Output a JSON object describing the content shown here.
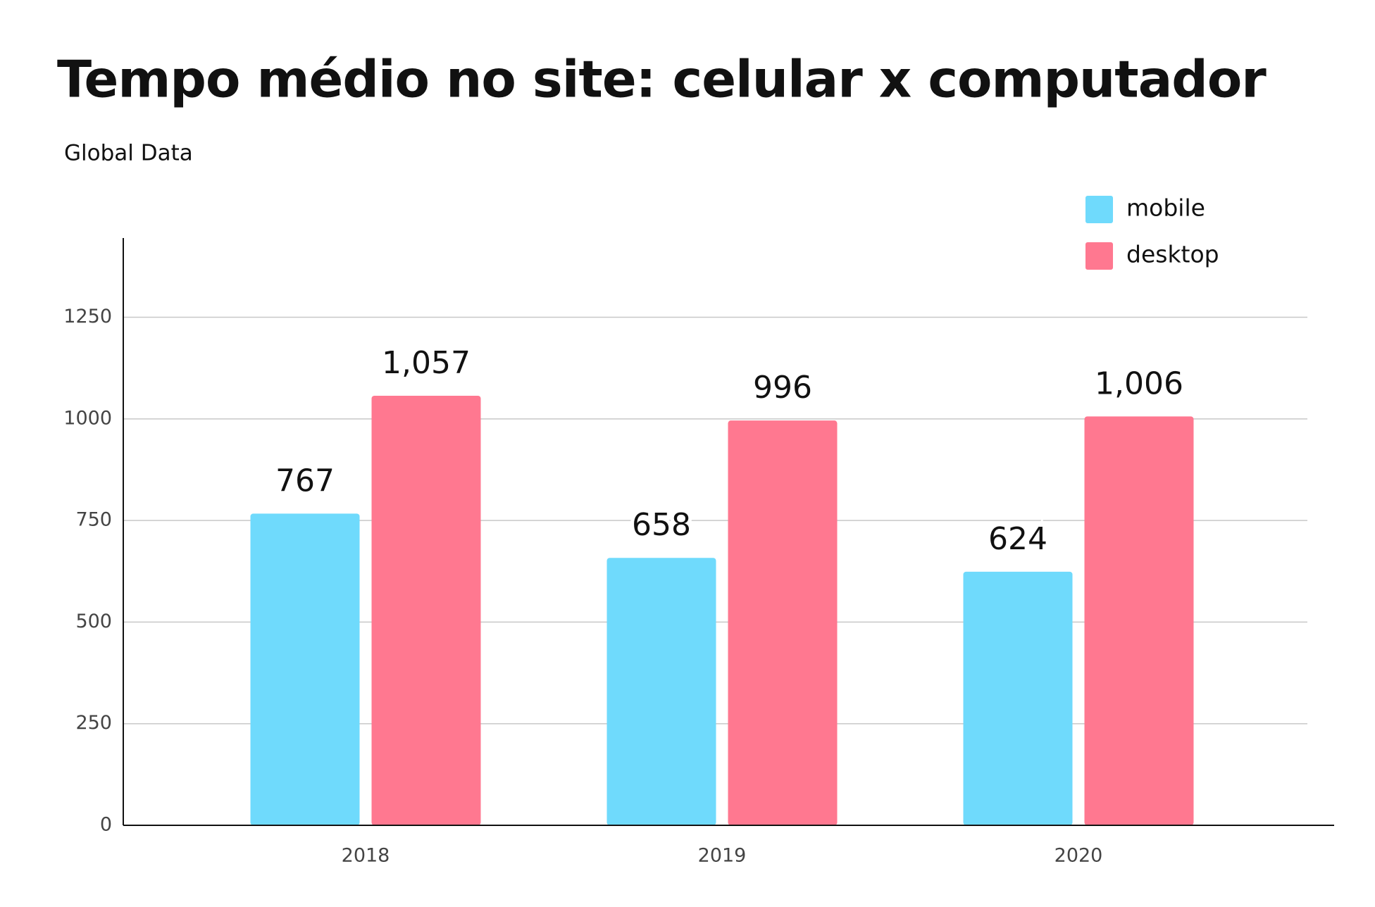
{
  "chart_data": {
    "type": "bar",
    "title": "Tempo médio no site: celular x computador",
    "subtitle": "Global Data",
    "categories": [
      "2018",
      "2019",
      "2020"
    ],
    "series": [
      {
        "name": "mobile",
        "color": "#6fdafc",
        "values": [
          767,
          658,
          624
        ],
        "value_labels": [
          "767",
          "658",
          "624"
        ]
      },
      {
        "name": "desktop",
        "color": "#ff7890",
        "values": [
          1057,
          996,
          1006
        ],
        "value_labels": [
          "1,057",
          "996",
          "1,006"
        ]
      }
    ],
    "ylim": [
      0,
      1445
    ],
    "yticks": [
      0,
      250,
      500,
      750,
      1000,
      1250
    ],
    "grid": true,
    "legend": "top-right"
  }
}
